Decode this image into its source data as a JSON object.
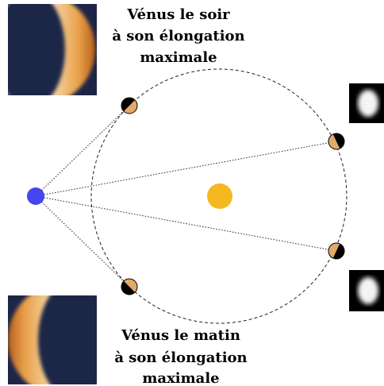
{
  "top_label": {
    "lines": [
      "Vénus le soir",
      "à son élongation",
      "maximale"
    ]
  },
  "bottom_label": {
    "lines": [
      "Vénus le matin",
      "à son élongation",
      "maximale"
    ]
  }
}
